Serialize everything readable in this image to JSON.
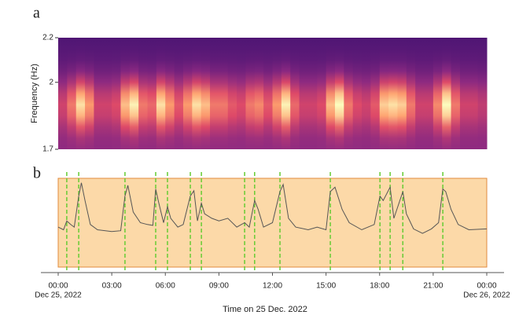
{
  "chart_data": [
    {
      "type": "heatmap",
      "panel_label": "a",
      "ylabel": "Frequency (Hz)",
      "colormap": "magma",
      "xlim": [
        0,
        24
      ],
      "ylim": [
        1.7,
        2.2
      ],
      "yticks": [
        1.7,
        2,
        2.2
      ],
      "x": [
        0,
        0.5,
        1,
        1.5,
        2,
        2.5,
        3,
        3.5,
        4,
        4.5,
        5,
        5.5,
        6,
        6.5,
        7,
        7.5,
        8,
        8.5,
        9,
        9.5,
        10,
        10.5,
        11,
        11.5,
        12,
        12.5,
        13,
        13.5,
        14,
        14.5,
        15,
        15.5,
        16,
        16.5,
        17,
        17.5,
        18,
        18.5,
        19,
        19.5,
        20,
        20.5,
        21,
        21.5,
        22,
        22.5,
        23,
        23.5
      ],
      "values": [
        0.3,
        0.5,
        0.8,
        0.6,
        0.3,
        0.3,
        0.35,
        0.7,
        0.85,
        0.5,
        0.45,
        0.8,
        0.6,
        0.4,
        0.6,
        0.8,
        0.7,
        0.5,
        0.5,
        0.4,
        0.35,
        0.5,
        0.55,
        0.4,
        0.6,
        0.85,
        0.45,
        0.3,
        0.3,
        0.35,
        0.7,
        0.9,
        0.5,
        0.35,
        0.3,
        0.4,
        0.75,
        0.8,
        0.75,
        0.5,
        0.3,
        0.3,
        0.55,
        0.9,
        0.5,
        0.3,
        0.3,
        0.25
      ]
    },
    {
      "type": "line",
      "panel_label": "b",
      "xlabel": "Time on 25 Dec. 2022",
      "color": "#555555",
      "event_color": "#66cc33",
      "xlim": [
        0,
        24
      ],
      "ylim": [
        0,
        100
      ],
      "xticks": [
        {
          "value": 0,
          "label": "00:00"
        },
        {
          "value": 3,
          "label": "03:00"
        },
        {
          "value": 6,
          "label": "06:00"
        },
        {
          "value": 9,
          "label": "09:00"
        },
        {
          "value": 12,
          "label": "12:00"
        },
        {
          "value": 15,
          "label": "15:00"
        },
        {
          "value": 18,
          "label": "18:00"
        },
        {
          "value": 21,
          "label": "21:00"
        },
        {
          "value": 24,
          "label": "00:00"
        }
      ],
      "xtick_sublabels": [
        {
          "value": 0,
          "label": "Dec 25, 2022"
        },
        {
          "value": 24,
          "label": "Dec 26, 2022"
        }
      ],
      "events": [
        0.48,
        1.15,
        3.74,
        5.46,
        6.12,
        7.4,
        8.02,
        10.44,
        11.0,
        12.42,
        15.24,
        18.02,
        18.59,
        19.3,
        21.54
      ],
      "x": [
        0,
        0.3,
        0.48,
        0.7,
        0.9,
        1.15,
        1.3,
        1.5,
        1.8,
        2.2,
        3.0,
        3.5,
        3.74,
        3.9,
        4.2,
        4.6,
        5.0,
        5.3,
        5.46,
        5.6,
        5.9,
        6.12,
        6.3,
        6.7,
        7.0,
        7.4,
        7.6,
        7.8,
        8.02,
        8.2,
        8.6,
        9.0,
        9.5,
        10.0,
        10.44,
        10.7,
        11.0,
        11.2,
        11.5,
        12.0,
        12.42,
        12.6,
        12.9,
        13.3,
        14.0,
        14.5,
        15.0,
        15.24,
        15.5,
        15.9,
        16.3,
        17.0,
        17.7,
        18.02,
        18.2,
        18.59,
        18.8,
        19.3,
        19.5,
        19.9,
        20.4,
        20.9,
        21.3,
        21.54,
        21.7,
        22.0,
        22.4,
        23.0,
        24.0
      ],
      "values": [
        45,
        42,
        52,
        48,
        45,
        80,
        95,
        75,
        48,
        42,
        40,
        41,
        80,
        92,
        62,
        50,
        48,
        47,
        88,
        75,
        50,
        68,
        55,
        45,
        48,
        80,
        86,
        52,
        72,
        60,
        55,
        52,
        55,
        45,
        50,
        45,
        75,
        65,
        45,
        50,
        85,
        93,
        55,
        45,
        42,
        45,
        42,
        85,
        90,
        65,
        50,
        42,
        48,
        80,
        75,
        90,
        55,
        85,
        60,
        43,
        38,
        43,
        50,
        88,
        85,
        65,
        48,
        42,
        43
      ]
    }
  ]
}
